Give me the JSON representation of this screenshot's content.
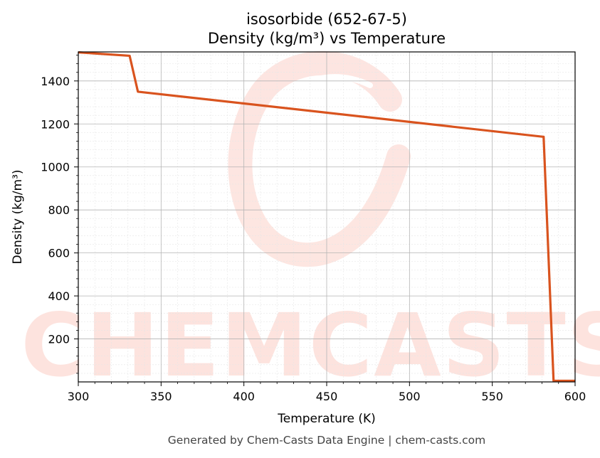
{
  "chart_data": {
    "type": "line",
    "title": "isosorbide (652-67-5)",
    "subtitle": "Density (kg/m³) vs Temperature",
    "xlabel": "Temperature (K)",
    "ylabel": "Density (kg/m³)",
    "xlim": [
      300,
      600
    ],
    "ylim": [
      0,
      1535
    ],
    "x_ticks": [
      300,
      350,
      400,
      450,
      500,
      550,
      600
    ],
    "y_ticks": [
      200,
      400,
      600,
      800,
      1000,
      1200,
      1400
    ],
    "grid": true,
    "legend": "none",
    "series": [
      {
        "color": "#d9531e",
        "points": [
          [
            300,
            1533
          ],
          [
            331,
            1517
          ],
          [
            336,
            1350
          ],
          [
            581,
            1140
          ],
          [
            587,
            5
          ],
          [
            600,
            5
          ]
        ]
      }
    ]
  },
  "watermark": {
    "text": "CHEMCASTS",
    "color": "#fde3de"
  },
  "footer": "Generated by Chem-Casts Data Engine | chem-casts.com"
}
